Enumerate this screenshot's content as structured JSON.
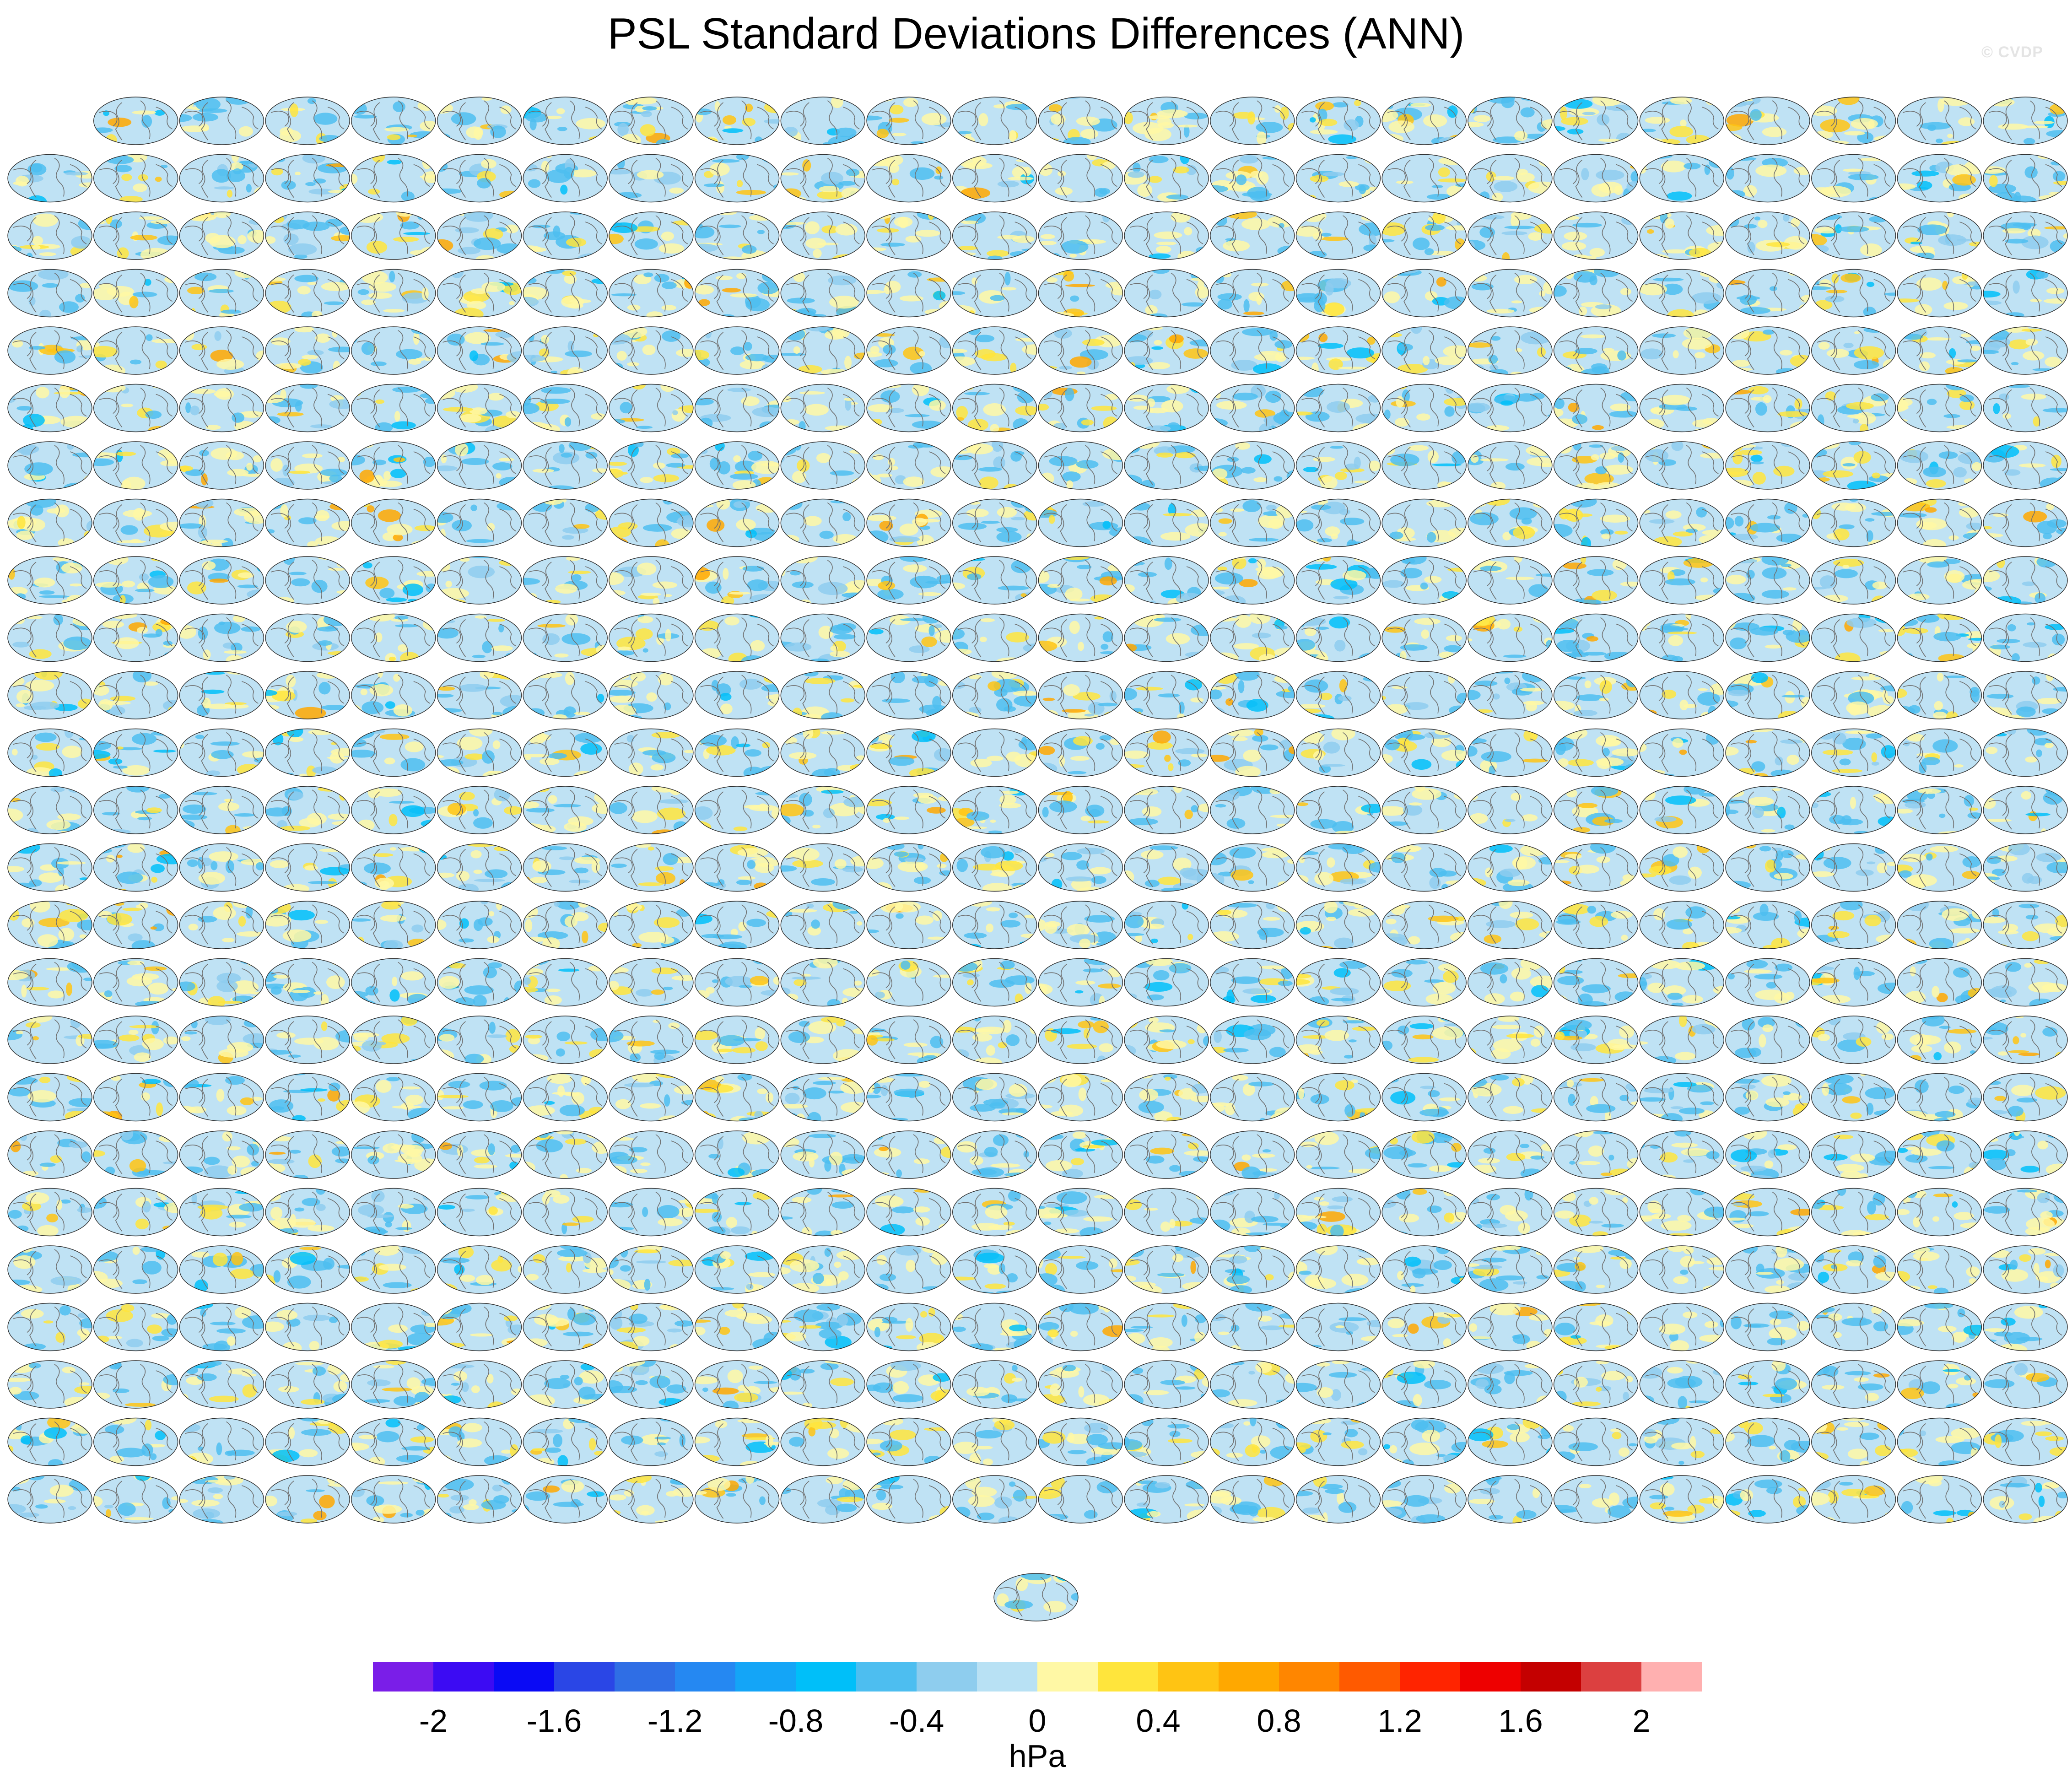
{
  "chart_data": {
    "type": "heatmap",
    "title": "PSL Standard Deviations Differences (ANN)",
    "panel_grid": {
      "rows": 25,
      "columns": 24,
      "first_row_panels": 23,
      "trailing_panels": 1
    },
    "colorbar": {
      "units": "hPa",
      "tick_labels": [
        "-2",
        "-1.6",
        "-1.2",
        "-0.8",
        "-0.4",
        "0",
        "0.4",
        "0.8",
        "1.2",
        "1.6",
        "2"
      ],
      "range": [
        -2.2,
        2.2
      ],
      "bin_width": 0.2,
      "colors": [
        "#7a1ee8",
        "#3c0bf3",
        "#0a0af5",
        "#2a46e6",
        "#2f6ee5",
        "#2588f2",
        "#14a5f7",
        "#00bff9",
        "#4dbef0",
        "#8ecdee",
        "#b8e1f4",
        "#fff8a5",
        "#ffe53c",
        "#ffc413",
        "#ffa800",
        "#ff8600",
        "#ff5a00",
        "#ff2400",
        "#ee0000",
        "#c40000",
        "#dc4040",
        "#ffb0b0"
      ]
    }
  },
  "watermark": "© CVDP",
  "colors": {
    "ocean_base": "#bfe2f4",
    "land_outline": "#6f6f6f",
    "panel_border": "#2a2a2a"
  }
}
